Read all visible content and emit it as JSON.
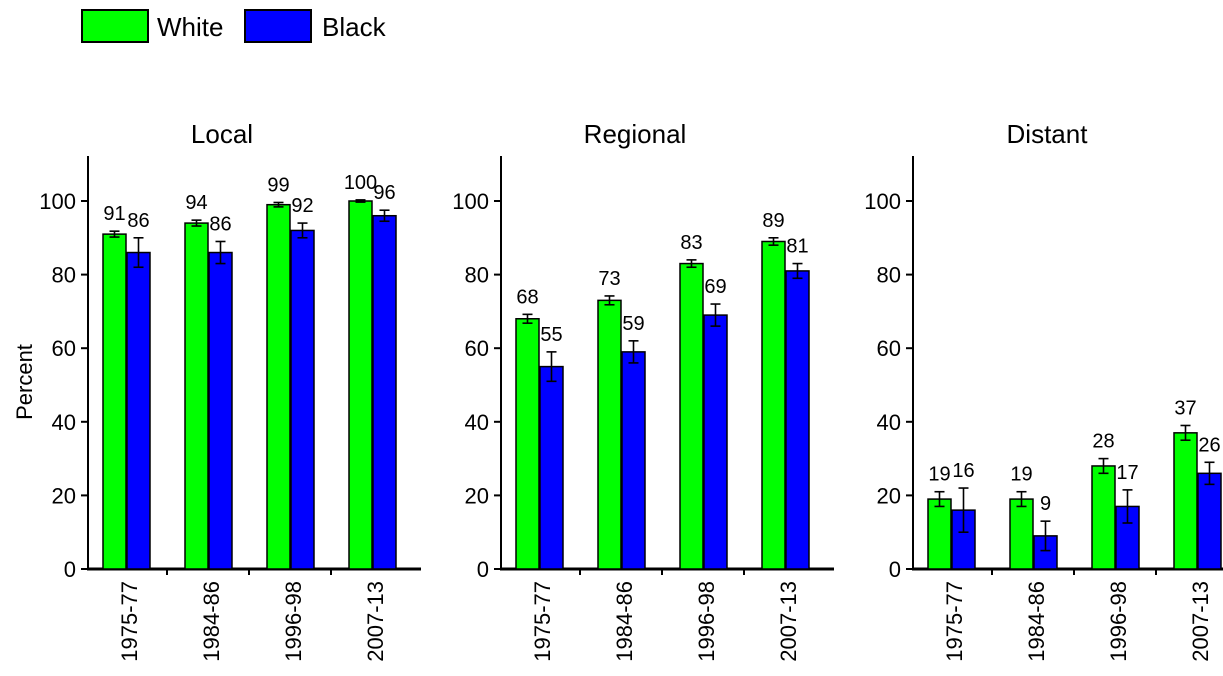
{
  "chart_data": {
    "type": "bar",
    "legend": {
      "placement": "top-left",
      "entries": [
        {
          "name": "White",
          "color": "#00ff00"
        },
        {
          "name": "Black",
          "color": "#0000ff"
        }
      ]
    },
    "ylabel": "Percent",
    "ylim": [
      0,
      110
    ],
    "yticks": [
      0,
      20,
      40,
      60,
      80,
      100
    ],
    "categories": [
      "1975-77",
      "1984-86",
      "1996-98",
      "2007-13"
    ],
    "panels": [
      {
        "title": "Local",
        "series": [
          {
            "name": "White",
            "values": [
              91,
              94,
              99,
              100
            ],
            "labels": [
              "91",
              "94",
              "99",
              "100"
            ],
            "errors": [
              0.8,
              0.8,
              0.6,
              0.3
            ]
          },
          {
            "name": "Black",
            "values": [
              86,
              86,
              92,
              96
            ],
            "labels": [
              "86",
              "86",
              "92",
              "96"
            ],
            "errors": [
              4,
              3,
              2,
              1.5
            ]
          }
        ]
      },
      {
        "title": "Regional",
        "series": [
          {
            "name": "White",
            "values": [
              68,
              73,
              83,
              89
            ],
            "labels": [
              "68",
              "73",
              "83",
              "89"
            ],
            "errors": [
              1.2,
              1.2,
              1,
              1
            ]
          },
          {
            "name": "Black",
            "values": [
              55,
              59,
              69,
              81
            ],
            "labels": [
              "55",
              "59",
              "69",
              "81"
            ],
            "errors": [
              4,
              3,
              3,
              2
            ]
          }
        ]
      },
      {
        "title": "Distant",
        "series": [
          {
            "name": "White",
            "values": [
              19,
              19,
              28,
              37
            ],
            "labels": [
              "19",
              "19",
              "28",
              "37"
            ],
            "errors": [
              2,
              2,
              2,
              2
            ]
          },
          {
            "name": "Black",
            "values": [
              16,
              9,
              17,
              26
            ],
            "labels": [
              "16",
              "9",
              "17",
              "26"
            ],
            "errors": [
              6,
              4,
              4.5,
              3
            ]
          }
        ]
      }
    ],
    "grid": false
  }
}
